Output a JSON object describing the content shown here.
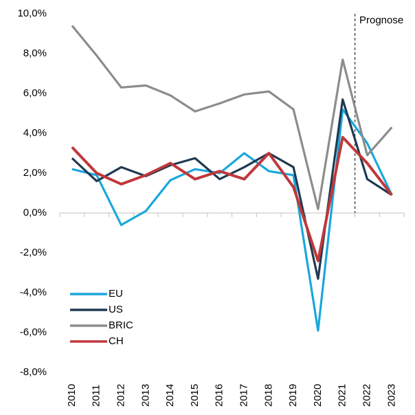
{
  "chart_data": {
    "type": "line",
    "categories": [
      "2010",
      "2011",
      "2012",
      "2013",
      "2014",
      "2015",
      "2016",
      "2017",
      "2018",
      "2019",
      "2020",
      "2021",
      "2022",
      "2023"
    ],
    "series": [
      {
        "name": "EU",
        "color": "#1aa7dd",
        "values": [
          2.2,
          1.9,
          -0.6,
          0.1,
          1.65,
          2.2,
          2.0,
          3.0,
          2.1,
          1.9,
          -5.9,
          5.2,
          3.5,
          0.9
        ]
      },
      {
        "name": "US",
        "color": "#1f3a52",
        "values": [
          2.75,
          1.6,
          2.3,
          1.85,
          2.4,
          2.75,
          1.7,
          2.3,
          3.0,
          2.3,
          -3.3,
          5.7,
          1.7,
          0.9
        ]
      },
      {
        "name": "BRIC",
        "color": "#8c8c8c",
        "values": [
          9.4,
          7.9,
          6.3,
          6.4,
          5.9,
          5.1,
          5.5,
          5.95,
          6.1,
          5.2,
          0.2,
          7.7,
          2.9,
          4.3
        ]
      },
      {
        "name": "CH",
        "color": "#c0373a",
        "values": [
          3.3,
          2.0,
          1.45,
          1.9,
          2.5,
          1.7,
          2.1,
          1.7,
          3.0,
          1.3,
          -2.4,
          3.8,
          2.5,
          0.9
        ]
      }
    ],
    "ylim": [
      -8,
      10
    ],
    "yticks": [
      {
        "value": -8,
        "label": "-8,0%"
      },
      {
        "value": -6,
        "label": "-6,0%"
      },
      {
        "value": -4,
        "label": "-4,0%"
      },
      {
        "value": -2,
        "label": "-2,0%"
      },
      {
        "value": 0,
        "label": "0,0%"
      },
      {
        "value": 2,
        "label": "2,0%"
      },
      {
        "value": 4,
        "label": "4,0%"
      },
      {
        "value": 6,
        "label": "6,0%"
      },
      {
        "value": 8,
        "label": "8,0%"
      },
      {
        "value": 10,
        "label": "10,0%"
      }
    ],
    "annotation": "Prognose",
    "legend": "lower left"
  }
}
